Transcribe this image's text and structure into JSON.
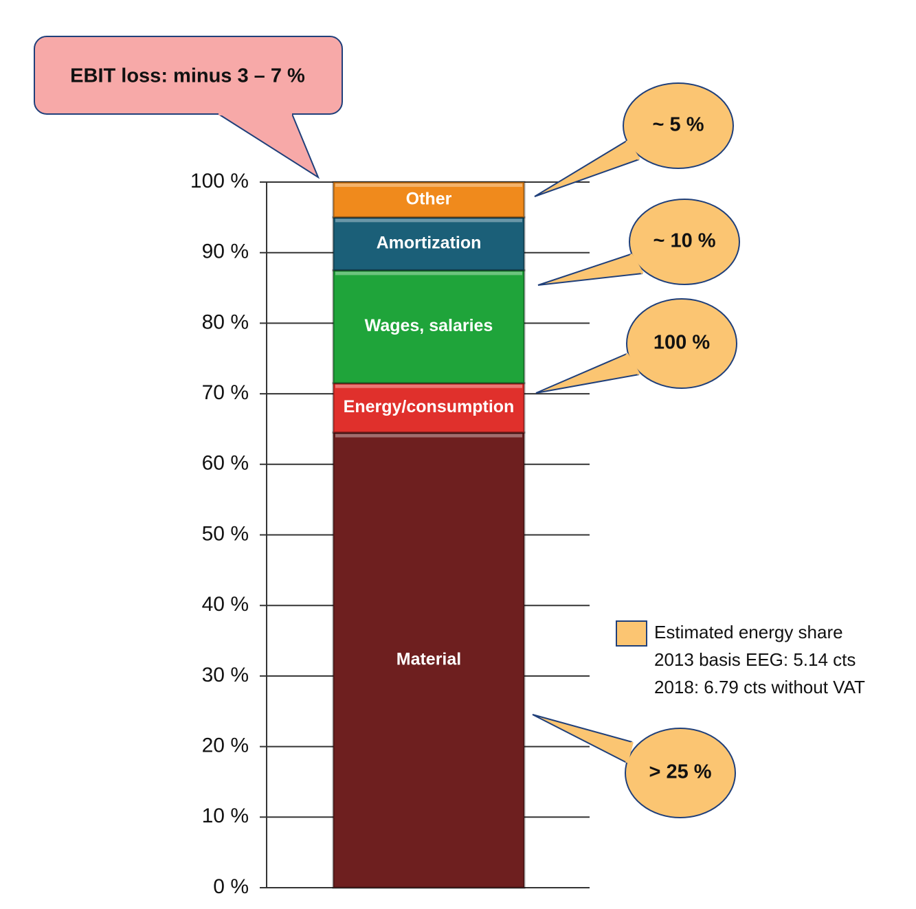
{
  "chart_data": {
    "type": "stacked_bar",
    "categories": [
      null
    ],
    "series": [
      {
        "name": "Material",
        "color": "#6e1f1f",
        "values": [
          64.5
        ]
      },
      {
        "name": "Energy/consumption",
        "color": "#e0302c",
        "values": [
          7
        ]
      },
      {
        "name": "Wages, salaries",
        "color": "#1fa43a",
        "values": [
          16
        ]
      },
      {
        "name": "Amortization",
        "color": "#1b5f78",
        "values": [
          7.5
        ]
      },
      {
        "name": "Other",
        "color": "#f08a1c",
        "values": [
          5
        ]
      }
    ],
    "ylim": [
      0,
      100
    ],
    "yticks": [
      {
        "value": 0,
        "label": "0 %"
      },
      {
        "value": 10,
        "label": "10 %"
      },
      {
        "value": 20,
        "label": "20 %"
      },
      {
        "value": 30,
        "label": "30 %"
      },
      {
        "value": 40,
        "label": "40 %"
      },
      {
        "value": 50,
        "label": "50 %"
      },
      {
        "value": 60,
        "label": "60 %"
      },
      {
        "value": 70,
        "label": "70 %"
      },
      {
        "value": 80,
        "label": "80 %"
      },
      {
        "value": 90,
        "label": "90 %"
      },
      {
        "value": 100,
        "label": "100 %"
      }
    ],
    "grid": true,
    "annotations": [
      {
        "text": "EBIT loss: minus 3 – 7 %",
        "color": "#f7a9a8"
      },
      {
        "text": "~ 5 %",
        "color": "#fbc572"
      },
      {
        "text": "~ 10 %",
        "color": "#fbc572"
      },
      {
        "text": "100 %",
        "color": "#fbc572"
      },
      {
        "text": "> 25 %",
        "color": "#fbc572"
      }
    ],
    "note": {
      "color": "#fbc572",
      "lines": [
        "Estimated energy share",
        "2013 basis EEG: 5.14 cts",
        "2018: 6.79 cts without VAT"
      ]
    }
  }
}
